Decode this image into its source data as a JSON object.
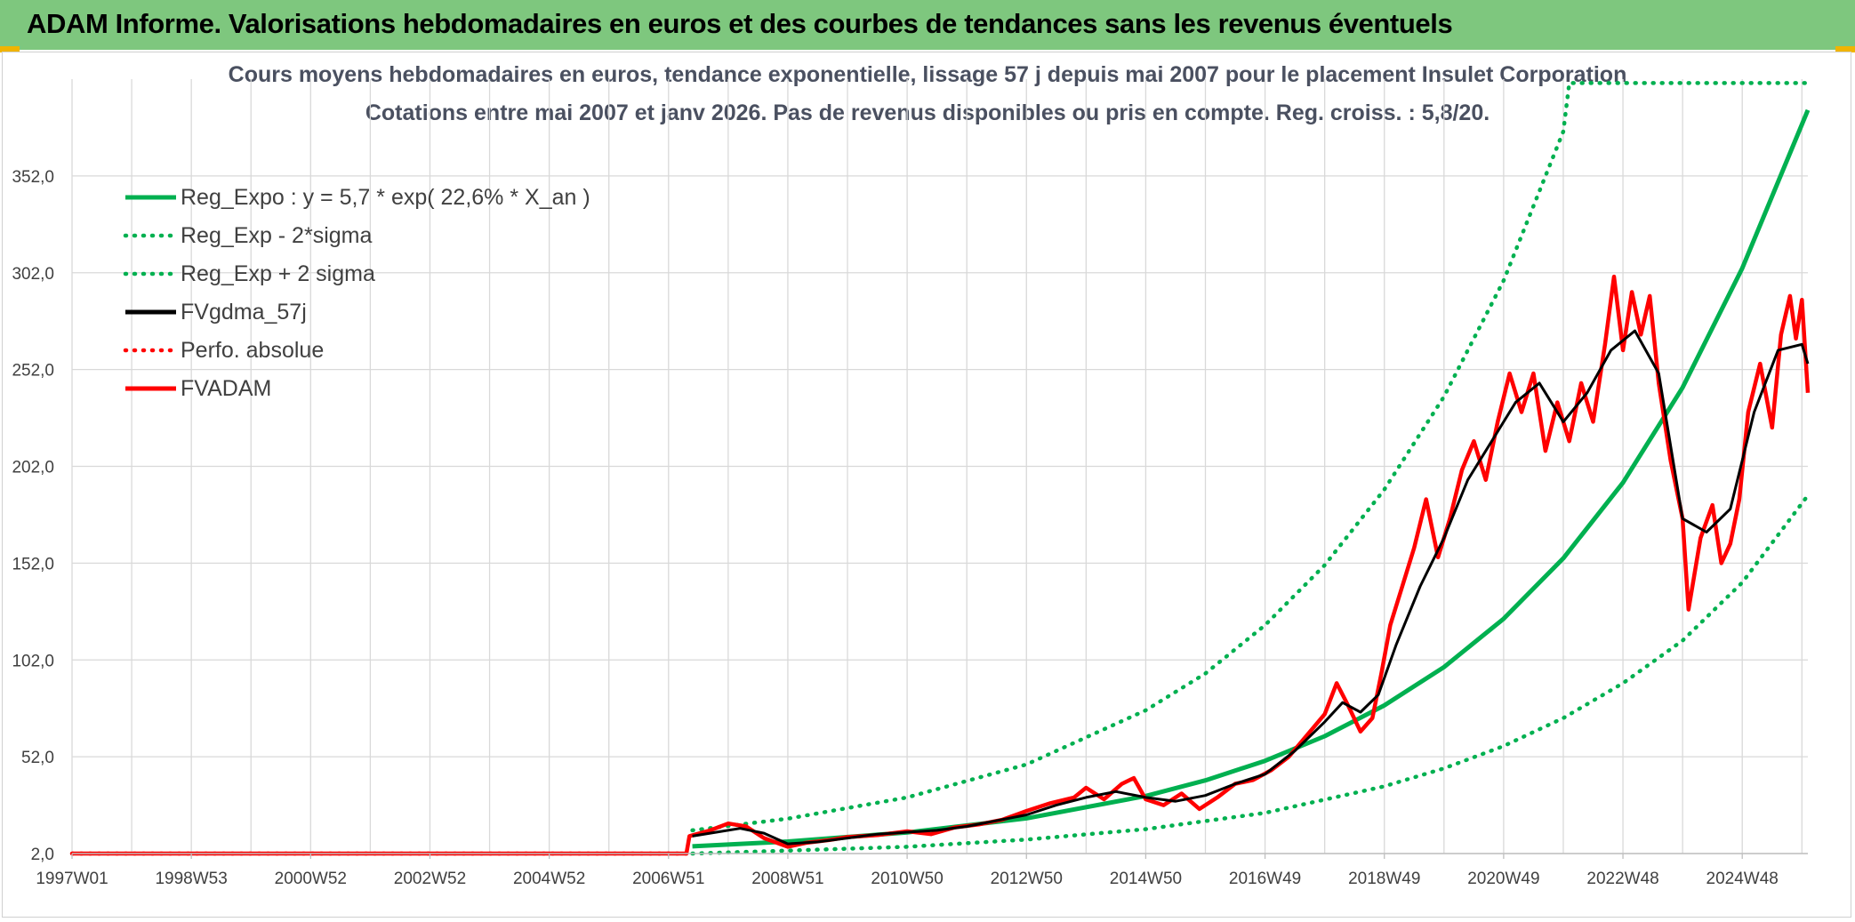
{
  "header": {
    "title": "ADAM Informe. Valorisations hebdomadaires en euros et des courbes de tendances sans les revenus éventuels",
    "background": "#7ec77e",
    "corner_color": "#f0b400"
  },
  "chart_data": {
    "type": "line",
    "title": "Cours moyens hebdomadaires en euros, tendance exponentielle, lissage 57 j depuis mai 2007 pour le placement Insulet Corporation",
    "subtitle": "Cotations entre mai 2007 et janv 2026. Pas de revenus disponibles ou pris en compte. Reg. croiss. : 5,8/20.",
    "xlabel": "",
    "ylabel": "",
    "x_tick_labels": [
      "1997W01",
      "1998W53",
      "2000W52",
      "2002W52",
      "2004W52",
      "2006W51",
      "2008W51",
      "2010W50",
      "2012W50",
      "2014W50",
      "2016W49",
      "2018W49",
      "2020W49",
      "2022W48",
      "2024W48"
    ],
    "x_range": [
      1997.0,
      2026.1
    ],
    "y_tick_labels": [
      "2,0",
      "52,0",
      "102,0",
      "152,0",
      "202,0",
      "252,0",
      "302,0",
      "352,0"
    ],
    "y_ticks": [
      2,
      52,
      102,
      152,
      202,
      252,
      302,
      352
    ],
    "ylim": [
      2,
      402
    ],
    "grid": true,
    "legend_position": "top-left",
    "series": [
      {
        "name": "Reg_Expo : y = 5,7 * exp( 22,6% *  X_an )",
        "style": "solid-thick",
        "color": "#00b050",
        "points": [
          [
            2007.4,
            5.7
          ],
          [
            2009.0,
            8.2
          ],
          [
            2011.0,
            12.9
          ],
          [
            2013.0,
            20.2
          ],
          [
            2015.0,
            31.7
          ],
          [
            2016.0,
            39.8
          ],
          [
            2017.0,
            49.9
          ],
          [
            2018.0,
            62.6
          ],
          [
            2019.0,
            78.5
          ],
          [
            2020.0,
            98.3
          ],
          [
            2021.0,
            123.3
          ],
          [
            2022.0,
            154.5
          ],
          [
            2023.0,
            193.6
          ],
          [
            2024.0,
            242.7
          ],
          [
            2025.0,
            304.3
          ],
          [
            2026.1,
            386.0
          ]
        ]
      },
      {
        "name": "Reg_Exp - 2*sigma",
        "style": "dotted",
        "color": "#00b050",
        "points": [
          [
            2007.4,
            2.0
          ],
          [
            2009.0,
            3.5
          ],
          [
            2011.0,
            5.5
          ],
          [
            2013.0,
            9.2
          ],
          [
            2015.0,
            14.6
          ],
          [
            2017.0,
            23.0
          ],
          [
            2019.0,
            36.7
          ],
          [
            2020.0,
            46.0
          ],
          [
            2021.0,
            57.5
          ],
          [
            2022.0,
            72.0
          ],
          [
            2023.0,
            90.0
          ],
          [
            2024.0,
            112.0
          ],
          [
            2025.0,
            142.0
          ],
          [
            2026.1,
            187.0
          ]
        ]
      },
      {
        "name": "Reg_Exp + 2 sigma",
        "style": "dotted",
        "color": "#00b050",
        "points": [
          [
            2007.4,
            14.0
          ],
          [
            2009.0,
            20.0
          ],
          [
            2011.0,
            31.0
          ],
          [
            2013.0,
            48.0
          ],
          [
            2015.0,
            76.0
          ],
          [
            2016.0,
            95.0
          ],
          [
            2017.0,
            120.0
          ],
          [
            2018.0,
            151.0
          ],
          [
            2019.0,
            190.0
          ],
          [
            2020.0,
            238.0
          ],
          [
            2021.0,
            298.0
          ],
          [
            2022.0,
            375.0
          ],
          [
            2022.1,
            400.0
          ],
          [
            2026.1,
            400.0
          ]
        ]
      },
      {
        "name": "FVgdma_57j",
        "style": "solid",
        "color": "#000000",
        "points": [
          [
            2007.4,
            11.0
          ],
          [
            2007.8,
            13.0
          ],
          [
            2008.2,
            15.0
          ],
          [
            2008.6,
            12.5
          ],
          [
            2009.0,
            7.0
          ],
          [
            2009.5,
            8.0
          ],
          [
            2010.0,
            10.0
          ],
          [
            2010.5,
            12.0
          ],
          [
            2011.0,
            13.0
          ],
          [
            2011.5,
            14.0
          ],
          [
            2012.0,
            16.0
          ],
          [
            2012.5,
            19.0
          ],
          [
            2013.0,
            22.0
          ],
          [
            2013.5,
            27.0
          ],
          [
            2014.0,
            31.0
          ],
          [
            2014.5,
            34.0
          ],
          [
            2015.0,
            31.0
          ],
          [
            2015.5,
            29.0
          ],
          [
            2016.0,
            32.0
          ],
          [
            2016.5,
            38.0
          ],
          [
            2017.0,
            43.0
          ],
          [
            2017.5,
            55.0
          ],
          [
            2018.0,
            70.0
          ],
          [
            2018.3,
            80.0
          ],
          [
            2018.6,
            75.0
          ],
          [
            2018.9,
            84.0
          ],
          [
            2019.2,
            110.0
          ],
          [
            2019.6,
            140.0
          ],
          [
            2020.0,
            165.0
          ],
          [
            2020.4,
            195.0
          ],
          [
            2020.8,
            215.0
          ],
          [
            2021.2,
            235.0
          ],
          [
            2021.6,
            245.0
          ],
          [
            2022.0,
            225.0
          ],
          [
            2022.4,
            240.0
          ],
          [
            2022.8,
            262.0
          ],
          [
            2023.2,
            272.0
          ],
          [
            2023.6,
            250.0
          ],
          [
            2024.0,
            175.0
          ],
          [
            2024.4,
            168.0
          ],
          [
            2024.8,
            180.0
          ],
          [
            2025.2,
            230.0
          ],
          [
            2025.6,
            262.0
          ],
          [
            2026.0,
            265.0
          ],
          [
            2026.1,
            255.0
          ]
        ]
      },
      {
        "name": "Perfo. absolue",
        "style": "dotted",
        "color": "#ff0000",
        "points": [
          [
            1997.0,
            2.0
          ],
          [
            2006.95,
            2.0
          ],
          [
            2007.4,
            2.0
          ]
        ]
      },
      {
        "name": "FVADAM",
        "style": "solid-thick",
        "color": "#ff0000",
        "points": [
          [
            1997.0,
            2.0
          ],
          [
            2007.3,
            2.0
          ],
          [
            2007.35,
            11.0
          ],
          [
            2007.7,
            14.0
          ],
          [
            2008.0,
            17.5
          ],
          [
            2008.3,
            16.0
          ],
          [
            2008.6,
            10.0
          ],
          [
            2009.0,
            5.5
          ],
          [
            2009.3,
            7.5
          ],
          [
            2009.7,
            9.0
          ],
          [
            2010.0,
            10.5
          ],
          [
            2010.5,
            11.5
          ],
          [
            2011.0,
            13.5
          ],
          [
            2011.4,
            12.0
          ],
          [
            2011.8,
            15.5
          ],
          [
            2012.2,
            17.0
          ],
          [
            2012.6,
            19.5
          ],
          [
            2013.0,
            24.0
          ],
          [
            2013.4,
            28.0
          ],
          [
            2013.8,
            31.0
          ],
          [
            2014.0,
            36.0
          ],
          [
            2014.3,
            30.0
          ],
          [
            2014.6,
            38.0
          ],
          [
            2014.8,
            41.0
          ],
          [
            2015.0,
            30.0
          ],
          [
            2015.3,
            27.0
          ],
          [
            2015.6,
            33.0
          ],
          [
            2015.9,
            25.0
          ],
          [
            2016.2,
            31.0
          ],
          [
            2016.5,
            38.0
          ],
          [
            2016.8,
            40.0
          ],
          [
            2017.1,
            45.0
          ],
          [
            2017.4,
            52.0
          ],
          [
            2017.7,
            63.0
          ],
          [
            2018.0,
            74.0
          ],
          [
            2018.2,
            90.0
          ],
          [
            2018.4,
            78.0
          ],
          [
            2018.6,
            65.0
          ],
          [
            2018.8,
            72.0
          ],
          [
            2018.95,
            95.0
          ],
          [
            2019.1,
            120.0
          ],
          [
            2019.3,
            140.0
          ],
          [
            2019.5,
            160.0
          ],
          [
            2019.7,
            185.0
          ],
          [
            2019.9,
            155.0
          ],
          [
            2020.1,
            175.0
          ],
          [
            2020.3,
            200.0
          ],
          [
            2020.5,
            215.0
          ],
          [
            2020.7,
            195.0
          ],
          [
            2020.9,
            225.0
          ],
          [
            2021.1,
            250.0
          ],
          [
            2021.3,
            230.0
          ],
          [
            2021.5,
            250.0
          ],
          [
            2021.7,
            210.0
          ],
          [
            2021.9,
            235.0
          ],
          [
            2022.1,
            215.0
          ],
          [
            2022.3,
            245.0
          ],
          [
            2022.5,
            225.0
          ],
          [
            2022.7,
            265.0
          ],
          [
            2022.85,
            300.0
          ],
          [
            2023.0,
            262.0
          ],
          [
            2023.15,
            292.0
          ],
          [
            2023.3,
            270.0
          ],
          [
            2023.45,
            290.0
          ],
          [
            2023.6,
            245.0
          ],
          [
            2023.8,
            205.0
          ],
          [
            2024.0,
            175.0
          ],
          [
            2024.1,
            128.0
          ],
          [
            2024.3,
            165.0
          ],
          [
            2024.5,
            182.0
          ],
          [
            2024.65,
            152.0
          ],
          [
            2024.8,
            162.0
          ],
          [
            2024.95,
            185.0
          ],
          [
            2025.1,
            230.0
          ],
          [
            2025.3,
            255.0
          ],
          [
            2025.5,
            222.0
          ],
          [
            2025.65,
            270.0
          ],
          [
            2025.8,
            290.0
          ],
          [
            2025.9,
            268.0
          ],
          [
            2026.0,
            288.0
          ],
          [
            2026.1,
            240.0
          ]
        ]
      }
    ]
  }
}
